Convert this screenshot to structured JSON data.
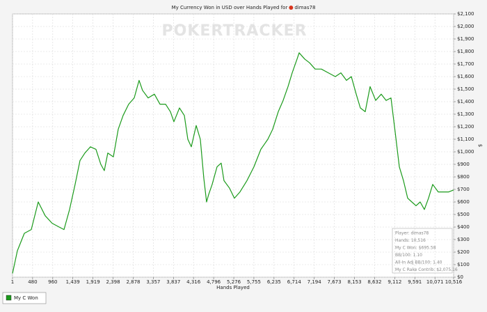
{
  "chart_data": {
    "type": "line",
    "title": "My Currency Won in USD over Hands Played for",
    "title_player": "dimas78",
    "watermark": "POKERTRACKER",
    "x_label": "Hands Played",
    "y_label": "$",
    "grid": true,
    "xlim": [
      1,
      10516
    ],
    "ylim": [
      0,
      2100
    ],
    "xticks": [
      1,
      480,
      960,
      {
        "value": 1439,
        "label": "1,439"
      },
      {
        "value": 1919,
        "label": "1,919"
      },
      {
        "value": 2398,
        "label": "2,398"
      },
      {
        "value": 2878,
        "label": "2,878"
      },
      {
        "value": 3357,
        "label": "3,357"
      },
      {
        "value": 3837,
        "label": "3,837"
      },
      {
        "value": 4316,
        "label": "4,316"
      },
      {
        "value": 4796,
        "label": "4,796"
      },
      {
        "value": 5276,
        "label": "5,276"
      },
      {
        "value": 5755,
        "label": "5,755"
      },
      {
        "value": 6235,
        "label": "6,235"
      },
      {
        "value": 6714,
        "label": "6,714"
      },
      {
        "value": 7194,
        "label": "7,194"
      },
      {
        "value": 7673,
        "label": "7,673"
      },
      {
        "value": 8153,
        "label": "8,153"
      },
      {
        "value": 8632,
        "label": "8,632"
      },
      {
        "value": 9112,
        "label": "9,112"
      },
      {
        "value": 9591,
        "label": "9,591"
      },
      {
        "value": 10071,
        "label": "10,071"
      },
      {
        "value": 10516,
        "label": "10,516"
      }
    ],
    "yticks": [
      {
        "value": 0,
        "label": "$0"
      },
      {
        "value": 100,
        "label": "$100"
      },
      {
        "value": 200,
        "label": "$200"
      },
      {
        "value": 300,
        "label": "$300"
      },
      {
        "value": 400,
        "label": "$400"
      },
      {
        "value": 500,
        "label": "$500"
      },
      {
        "value": 600,
        "label": "$600"
      },
      {
        "value": 700,
        "label": "$700"
      },
      {
        "value": 800,
        "label": "$800"
      },
      {
        "value": 900,
        "label": "$900"
      },
      {
        "value": 1000,
        "label": "$1,000"
      },
      {
        "value": 1100,
        "label": "$1,100"
      },
      {
        "value": 1200,
        "label": "$1,200"
      },
      {
        "value": 1300,
        "label": "$1,300"
      },
      {
        "value": 1400,
        "label": "$1,400"
      },
      {
        "value": 1500,
        "label": "$1,500"
      },
      {
        "value": 1600,
        "label": "$1,600"
      },
      {
        "value": 1700,
        "label": "$1,700"
      },
      {
        "value": 1800,
        "label": "$1,800"
      },
      {
        "value": 1900,
        "label": "$1,900"
      },
      {
        "value": 2000,
        "label": "$2,000"
      },
      {
        "value": 2100,
        "label": "$2,100"
      }
    ],
    "x": [
      1,
      117,
      283,
      448,
      614,
      780,
      946,
      1112,
      1228,
      1361,
      1493,
      1609,
      1725,
      1858,
      1990,
      2106,
      2189,
      2272,
      2405,
      2521,
      2637,
      2770,
      2902,
      3018,
      3101,
      3234,
      3383,
      3516,
      3649,
      3765,
      3848,
      3981,
      4097,
      4180,
      4263,
      4379,
      4478,
      4561,
      4627,
      4677,
      4760,
      4876,
      4975,
      5042,
      5174,
      5290,
      5423,
      5589,
      5755,
      5921,
      6087,
      6203,
      6336,
      6452,
      6568,
      6668,
      6784,
      6834,
      6966,
      7082,
      7215,
      7364,
      7530,
      7696,
      7829,
      7962,
      8078,
      8194,
      8293,
      8409,
      8525,
      8658,
      8791,
      8907,
      9023,
      9122,
      9222,
      9321,
      9421,
      9520,
      9620,
      9719,
      9819,
      9918,
      10018,
      10150,
      10283,
      10399,
      10516
    ],
    "series": [
      {
        "name": "My C Won",
        "color": "#1a9a1a",
        "values": [
          30,
          211,
          350,
          380,
          600,
          490,
          430,
          400,
          380,
          540,
          740,
          930,
          990,
          1040,
          1020,
          900,
          850,
          990,
          960,
          1180,
          1290,
          1380,
          1430,
          1570,
          1490,
          1430,
          1460,
          1380,
          1380,
          1320,
          1240,
          1350,
          1290,
          1100,
          1040,
          1210,
          1100,
          790,
          600,
          660,
          740,
          880,
          910,
          770,
          710,
          630,
          680,
          770,
          880,
          1020,
          1100,
          1180,
          1320,
          1410,
          1520,
          1630,
          1740,
          1790,
          1740,
          1710,
          1660,
          1660,
          1630,
          1600,
          1630,
          1570,
          1600,
          1460,
          1350,
          1320,
          1520,
          1410,
          1460,
          1410,
          1430,
          1160,
          880,
          770,
          630,
          600,
          570,
          600,
          540,
          630,
          740,
          680,
          680,
          680,
          695.58
        ]
      }
    ],
    "info_box": [
      "Player: dimas78",
      "Hands: 10,516",
      "My C Won: $695.58",
      "BB/100: 1.10",
      "All-In Adj BB/100: 1.40",
      "My C Rake Contrib: $2,075.16"
    ]
  }
}
